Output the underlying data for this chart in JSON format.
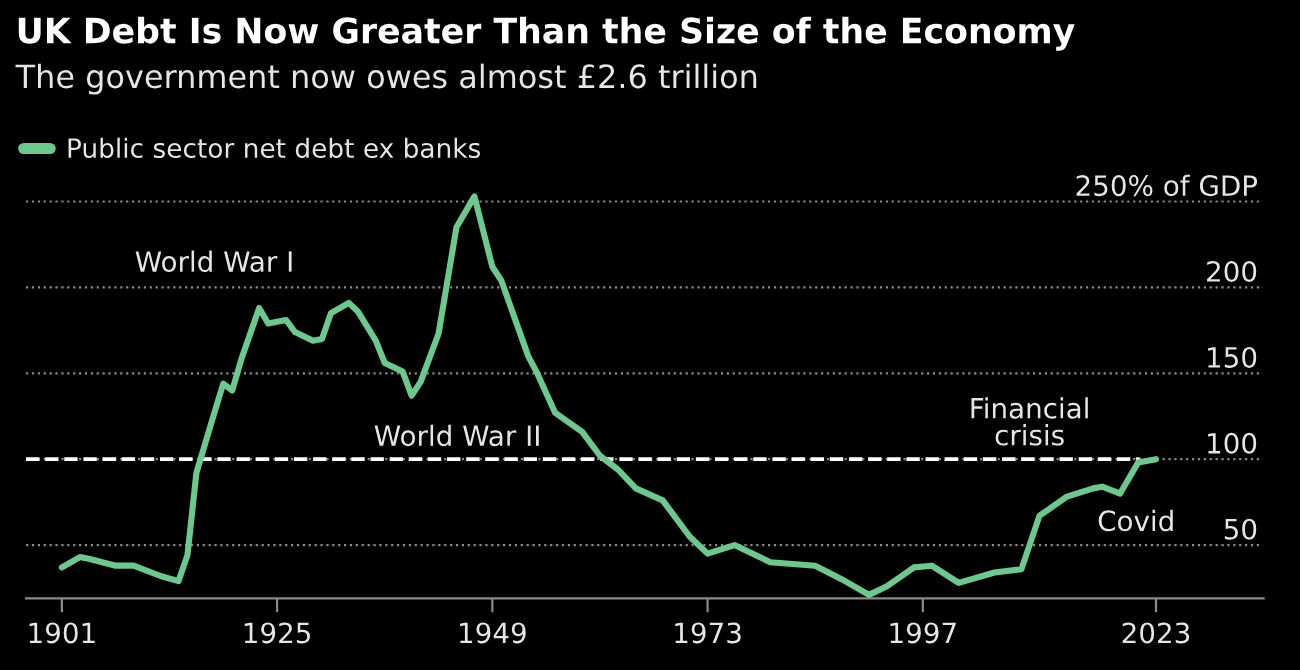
{
  "chart_data": {
    "type": "line",
    "title": "UK Debt Is Now Greater Than the Size of the Economy",
    "subtitle": "The government now owes almost £2.6 trillion",
    "x": [
      1901,
      1903,
      1904,
      1907,
      1909,
      1912,
      1914,
      1915,
      1916,
      1918,
      1919,
      1920,
      1921,
      1923,
      1924,
      1926,
      1927,
      1929,
      1930,
      1931,
      1933,
      1934,
      1936,
      1937,
      1939,
      1940,
      1941,
      1943,
      1945,
      1947,
      1949,
      1950,
      1953,
      1954,
      1956,
      1959,
      1961,
      1963,
      1965,
      1968,
      1971,
      1973,
      1976,
      1980,
      1985,
      1988,
      1991,
      1993,
      1996,
      1998,
      2001,
      2005,
      2008,
      2010,
      2013,
      2016,
      2017,
      2019,
      2021,
      2023
    ],
    "series": [
      {
        "name": "Public sector net debt ex banks",
        "color": "#6cc98d",
        "values": [
          37,
          43,
          42,
          38,
          38,
          32,
          29,
          44,
          92,
          127,
          144,
          140,
          158,
          188,
          179,
          181,
          174,
          169,
          170,
          185,
          191,
          186,
          169,
          156,
          151,
          137,
          145,
          173,
          235,
          253,
          212,
          204,
          160,
          150,
          127,
          116,
          102,
          94,
          83,
          76,
          55,
          45,
          50,
          40,
          38,
          30,
          21,
          26,
          37,
          38,
          28,
          34,
          36,
          67,
          78,
          83,
          84,
          80,
          98,
          100
        ]
      }
    ],
    "xlim": [
      1897,
      2035
    ],
    "ylim": [
      19,
      262
    ],
    "xticks": [
      1901,
      1925,
      1949,
      1973,
      1997,
      2023
    ],
    "yticks": [
      50,
      100,
      150,
      200,
      {
        "value": 250,
        "label": "250% of GDP"
      }
    ],
    "ref_lines": [
      {
        "axis": "y",
        "value": 100,
        "color": "#ffffff",
        "line_style": "dashed"
      }
    ],
    "annotations": [
      "World War I",
      "World War II",
      "Financial\ncrisis",
      "Covid"
    ],
    "grid": "y",
    "legend": "top left",
    "line_style": "solid",
    "marker": "none"
  }
}
